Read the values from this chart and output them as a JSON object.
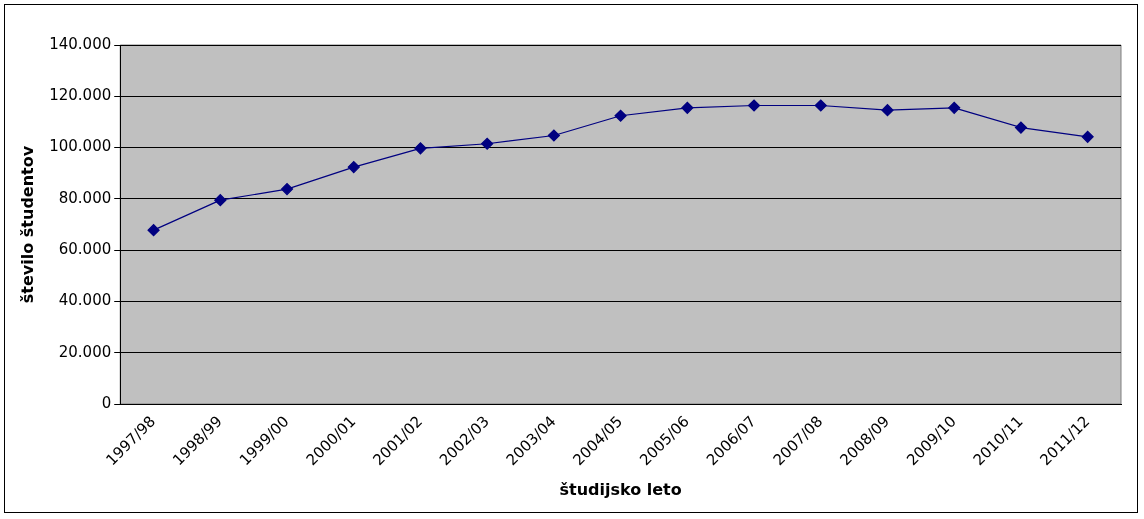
{
  "chart_data": {
    "type": "line",
    "xlabel": "študijsko leto",
    "ylabel": "število študentov",
    "categories": [
      "1997/98",
      "1998/99",
      "1999/00",
      "2000/01",
      "2001/02",
      "2002/03",
      "2003/04",
      "2004/05",
      "2005/06",
      "2006/07",
      "2007/08",
      "2008/09",
      "2009/10",
      "2010/11",
      "2011/12"
    ],
    "series": [
      {
        "color": "#000080",
        "values": [
          67800,
          79500,
          83800,
          92400,
          99700,
          101500,
          104700,
          112400,
          115500,
          116400,
          116400,
          114600,
          115500,
          107800,
          104200
        ]
      }
    ],
    "ylim": [
      0,
      140000
    ],
    "yticks": [
      0,
      {
        "value": 20000,
        "label": "20.000"
      },
      {
        "value": 40000,
        "label": "40.000"
      },
      {
        "value": 60000,
        "label": "60.000"
      },
      {
        "value": 80000,
        "label": "80.000"
      },
      {
        "value": 100000,
        "label": "100.000"
      },
      {
        "value": 120000,
        "label": "120.000"
      },
      {
        "value": 140000,
        "label": "140.000"
      }
    ],
    "grid": "y",
    "legend": false,
    "marker": "diamond",
    "line_style": "solid"
  }
}
